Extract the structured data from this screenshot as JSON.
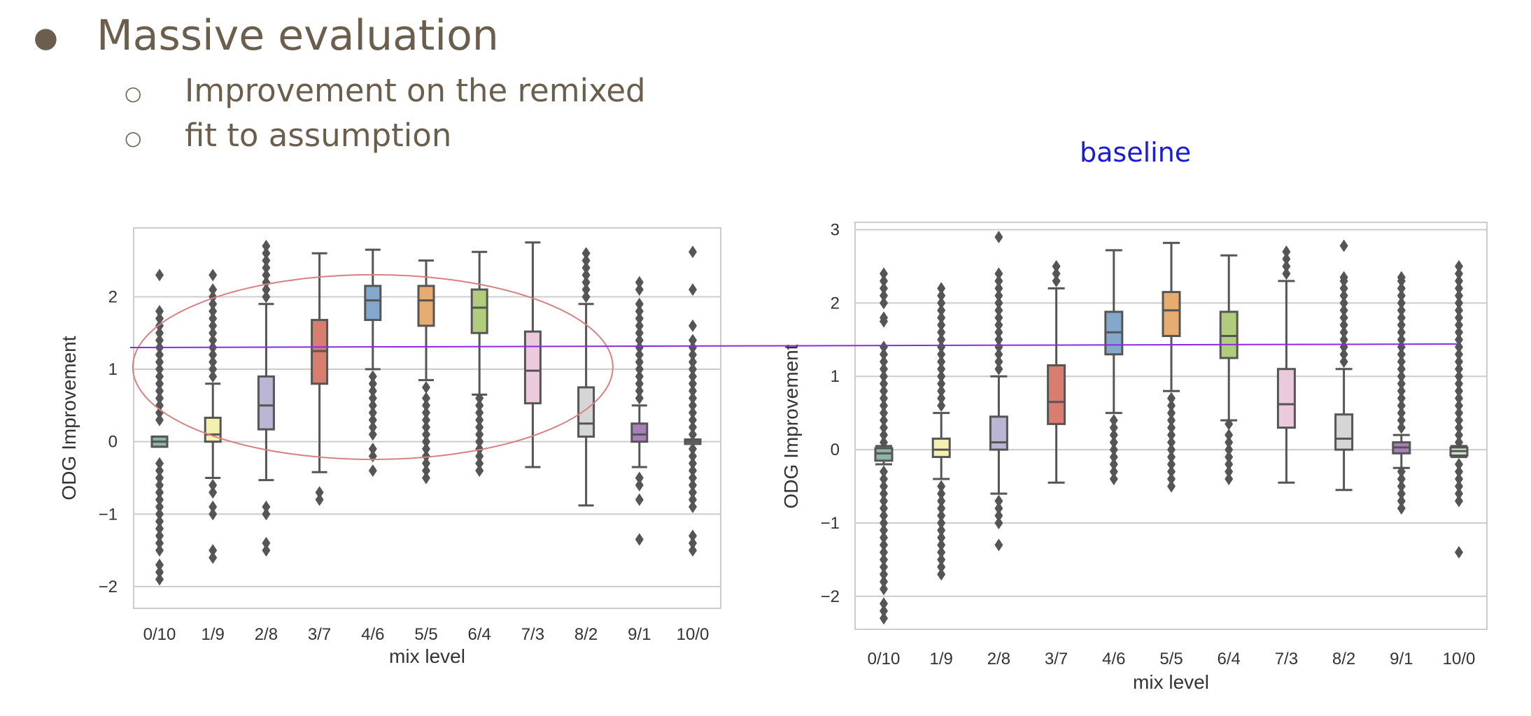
{
  "bullets": {
    "main": "Massive evaluation",
    "sub": [
      "Improvement on the remixed",
      "fit to assumption"
    ]
  },
  "annotation_label": "baseline",
  "colors": {
    "box_fill": [
      "#8fb3a6",
      "#f3f1b2",
      "#b9b5d3",
      "#d97d70",
      "#84a8cc",
      "#e6ac70",
      "#b0cc7c",
      "#ebcade",
      "#d6d6d6",
      "#a87fb8",
      "#cfe5c9"
    ],
    "ellipse": "#d98080",
    "reference_line": "#8a2be2",
    "grid": "#cccccc",
    "whisker": "#555555"
  },
  "chart_data": [
    {
      "type": "box",
      "xlabel": "mix level",
      "ylabel": "ODG Improvement",
      "ylim": [
        -2.3,
        2.95
      ],
      "yticks": [
        2,
        1,
        0,
        -1,
        -2
      ],
      "grid": true,
      "categories": [
        "0/10",
        "1/9",
        "2/8",
        "3/7",
        "4/6",
        "5/5",
        "6/4",
        "7/3",
        "8/2",
        "9/1",
        "10/0"
      ],
      "boxes": [
        {
          "q1": -0.07,
          "median": 0.0,
          "q3": 0.07,
          "whisker_low": -0.07,
          "whisker_high": 0.07,
          "outliers": [
            2.3,
            1.8,
            1.7,
            1.6,
            1.5,
            1.4,
            1.3,
            1.2,
            1.1,
            1.0,
            0.9,
            0.8,
            0.7,
            0.6,
            0.5,
            0.4,
            0.3,
            -0.3,
            -0.4,
            -0.5,
            -0.6,
            -0.7,
            -0.8,
            -0.9,
            -1.0,
            -1.1,
            -1.2,
            -1.3,
            -1.4,
            -1.5,
            -1.7,
            -1.8,
            -1.9
          ]
        },
        {
          "q1": 0.0,
          "median": 0.1,
          "q3": 0.33,
          "whisker_low": -0.5,
          "whisker_high": 0.8,
          "outliers": [
            2.3,
            2.1,
            2.0,
            1.9,
            1.8,
            1.7,
            1.6,
            1.5,
            1.4,
            1.3,
            1.2,
            1.1,
            1.0,
            0.9,
            -0.6,
            -0.7,
            -0.9,
            -1.0,
            -1.5,
            -1.6
          ]
        },
        {
          "q1": 0.17,
          "median": 0.5,
          "q3": 0.9,
          "whisker_low": -0.53,
          "whisker_high": 1.9,
          "outliers": [
            2.7,
            2.6,
            2.5,
            2.4,
            2.3,
            2.2,
            2.1,
            2.0,
            -0.9,
            -1.0,
            -1.4,
            -1.5
          ]
        },
        {
          "q1": 0.8,
          "median": 1.25,
          "q3": 1.68,
          "whisker_low": -0.42,
          "whisker_high": 2.6,
          "outliers": [
            -0.7,
            -0.8
          ]
        },
        {
          "q1": 1.68,
          "median": 1.95,
          "q3": 2.15,
          "whisker_low": 1.0,
          "whisker_high": 2.65,
          "outliers": [
            0.9,
            0.8,
            0.7,
            0.6,
            0.5,
            0.4,
            0.3,
            0.2,
            0.1,
            -0.1,
            -0.2,
            -0.4
          ]
        },
        {
          "q1": 1.6,
          "median": 1.95,
          "q3": 2.15,
          "whisker_low": 0.85,
          "whisker_high": 2.5,
          "outliers": [
            0.75,
            0.6,
            0.5,
            0.4,
            0.3,
            0.2,
            0.1,
            0.0,
            -0.1,
            -0.2,
            -0.3,
            -0.4,
            -0.5
          ]
        },
        {
          "q1": 1.5,
          "median": 1.85,
          "q3": 2.1,
          "whisker_low": 0.65,
          "whisker_high": 2.62,
          "outliers": [
            0.6,
            0.5,
            0.4,
            0.3,
            0.2,
            0.1,
            0.0,
            -0.1,
            -0.2,
            -0.3,
            -0.4
          ]
        },
        {
          "q1": 0.53,
          "median": 0.98,
          "q3": 1.52,
          "whisker_low": -0.35,
          "whisker_high": 2.75,
          "outliers": []
        },
        {
          "q1": 0.07,
          "median": 0.25,
          "q3": 0.75,
          "whisker_low": -0.88,
          "whisker_high": 1.9,
          "outliers": [
            2.6,
            2.5,
            2.4,
            2.3,
            2.2,
            2.1,
            2.0
          ]
        },
        {
          "q1": 0.0,
          "median": 0.1,
          "q3": 0.25,
          "whisker_low": -0.35,
          "whisker_high": 0.5,
          "outliers": [
            2.2,
            2.1,
            1.9,
            1.8,
            1.7,
            1.6,
            1.5,
            1.4,
            1.3,
            1.2,
            1.1,
            1.0,
            0.9,
            0.8,
            0.7,
            0.6,
            -0.5,
            -0.6,
            -0.8,
            -1.35
          ]
        },
        {
          "q1": -0.03,
          "median": 0.0,
          "q3": 0.03,
          "whisker_low": -0.03,
          "whisker_high": 0.03,
          "outliers": [
            2.62,
            2.1,
            1.6,
            1.4,
            1.3,
            1.2,
            1.1,
            1.0,
            0.9,
            0.8,
            0.7,
            0.6,
            0.5,
            0.4,
            0.3,
            0.2,
            0.1,
            -0.1,
            -0.2,
            -0.3,
            -0.4,
            -0.5,
            -0.6,
            -0.7,
            -0.8,
            -0.9,
            -1.3,
            -1.4,
            -1.5
          ]
        }
      ],
      "annotation": {
        "shape": "ellipse",
        "center": {
          "category": "4/6",
          "value": 1.03
        },
        "y_span": [
          -0.25,
          2.3
        ]
      }
    },
    {
      "type": "box",
      "xlabel": "mix level",
      "ylabel": "ODG Improvement",
      "ylim": [
        -2.45,
        3.1
      ],
      "yticks": [
        3,
        2,
        1,
        0,
        -1,
        -2
      ],
      "grid": true,
      "categories": [
        "0/10",
        "1/9",
        "2/8",
        "3/7",
        "4/6",
        "5/5",
        "6/4",
        "7/3",
        "8/2",
        "9/1",
        "10/0"
      ],
      "boxes": [
        {
          "q1": -0.15,
          "median": -0.05,
          "q3": 0.02,
          "whisker_low": -0.2,
          "whisker_high": 0.05,
          "outliers": [
            2.4,
            2.3,
            2.2,
            2.1,
            2.0,
            1.8,
            1.75,
            1.4,
            1.3,
            1.2,
            1.1,
            1.0,
            0.9,
            0.8,
            0.7,
            0.6,
            0.5,
            0.4,
            0.3,
            0.2,
            0.1,
            -0.3,
            -0.4,
            -0.5,
            -0.6,
            -0.7,
            -0.8,
            -0.9,
            -1.0,
            -1.1,
            -1.2,
            -1.3,
            -1.4,
            -1.5,
            -1.6,
            -1.7,
            -1.8,
            -1.9,
            -2.1,
            -2.2,
            -2.3
          ]
        },
        {
          "q1": -0.1,
          "median": 0.0,
          "q3": 0.15,
          "whisker_low": -0.4,
          "whisker_high": 0.5,
          "outliers": [
            2.2,
            2.1,
            2.0,
            1.9,
            1.8,
            1.7,
            1.6,
            1.5,
            1.4,
            1.3,
            1.2,
            1.1,
            1.0,
            0.9,
            0.8,
            0.7,
            0.6,
            -0.5,
            -0.6,
            -0.7,
            -0.8,
            -0.9,
            -1.0,
            -1.1,
            -1.2,
            -1.3,
            -1.4,
            -1.5,
            -1.6,
            -1.7
          ]
        },
        {
          "q1": 0.0,
          "median": 0.1,
          "q3": 0.45,
          "whisker_low": -0.6,
          "whisker_high": 1.0,
          "outliers": [
            2.9,
            2.4,
            2.3,
            2.2,
            2.1,
            2.0,
            1.9,
            1.8,
            1.7,
            1.6,
            1.5,
            1.4,
            1.3,
            1.2,
            1.1,
            -0.7,
            -0.8,
            -0.9,
            -1.0,
            -1.3
          ]
        },
        {
          "q1": 0.35,
          "median": 0.65,
          "q3": 1.15,
          "whisker_low": -0.45,
          "whisker_high": 2.2,
          "outliers": [
            2.5,
            2.4,
            2.3
          ]
        },
        {
          "q1": 1.3,
          "median": 1.6,
          "q3": 1.88,
          "whisker_low": 0.5,
          "whisker_high": 2.72,
          "outliers": [
            0.4,
            0.3,
            0.2,
            0.1,
            0.0,
            -0.1,
            -0.2,
            -0.3,
            -0.4
          ]
        },
        {
          "q1": 1.55,
          "median": 1.9,
          "q3": 2.15,
          "whisker_low": 0.8,
          "whisker_high": 2.82,
          "outliers": [
            0.7,
            0.6,
            0.5,
            0.4,
            0.3,
            0.2,
            0.1,
            0.0,
            -0.1,
            -0.2,
            -0.3,
            -0.4,
            -0.5
          ]
        },
        {
          "q1": 1.25,
          "median": 1.55,
          "q3": 1.88,
          "whisker_low": 0.4,
          "whisker_high": 2.65,
          "outliers": [
            0.35,
            0.2,
            0.1,
            0.0,
            -0.1,
            -0.2,
            -0.3,
            -0.4
          ]
        },
        {
          "q1": 0.3,
          "median": 0.62,
          "q3": 1.1,
          "whisker_low": -0.45,
          "whisker_high": 2.3,
          "outliers": [
            2.7,
            2.6,
            2.5,
            2.4
          ]
        },
        {
          "q1": 0.0,
          "median": 0.15,
          "q3": 0.48,
          "whisker_low": -0.55,
          "whisker_high": 1.1,
          "outliers": [
            2.78,
            2.35,
            2.3,
            2.2,
            2.1,
            2.0,
            1.9,
            1.8,
            1.7,
            1.6,
            1.5,
            1.4,
            1.3,
            1.2
          ]
        },
        {
          "q1": -0.05,
          "median": 0.03,
          "q3": 0.1,
          "whisker_low": -0.25,
          "whisker_high": 0.2,
          "outliers": [
            2.35,
            2.3,
            2.2,
            2.1,
            2.0,
            1.9,
            1.8,
            1.7,
            1.6,
            1.5,
            1.4,
            1.3,
            1.2,
            1.1,
            1.0,
            0.9,
            0.8,
            0.7,
            0.6,
            0.5,
            0.4,
            0.3,
            -0.3,
            -0.4,
            -0.5,
            -0.6,
            -0.7,
            -0.8
          ]
        },
        {
          "q1": -0.08,
          "median": -0.02,
          "q3": 0.03,
          "whisker_low": -0.1,
          "whisker_high": 0.05,
          "outliers": [
            2.5,
            2.4,
            2.3,
            2.2,
            2.1,
            2.0,
            1.9,
            1.8,
            1.7,
            1.6,
            1.5,
            1.4,
            1.3,
            1.2,
            1.1,
            1.0,
            0.9,
            0.8,
            0.7,
            0.6,
            0.5,
            0.4,
            0.3,
            0.2,
            0.1,
            -0.2,
            -0.3,
            -0.4,
            -0.5,
            -0.6,
            -0.7,
            -1.4
          ]
        }
      ]
    }
  ]
}
